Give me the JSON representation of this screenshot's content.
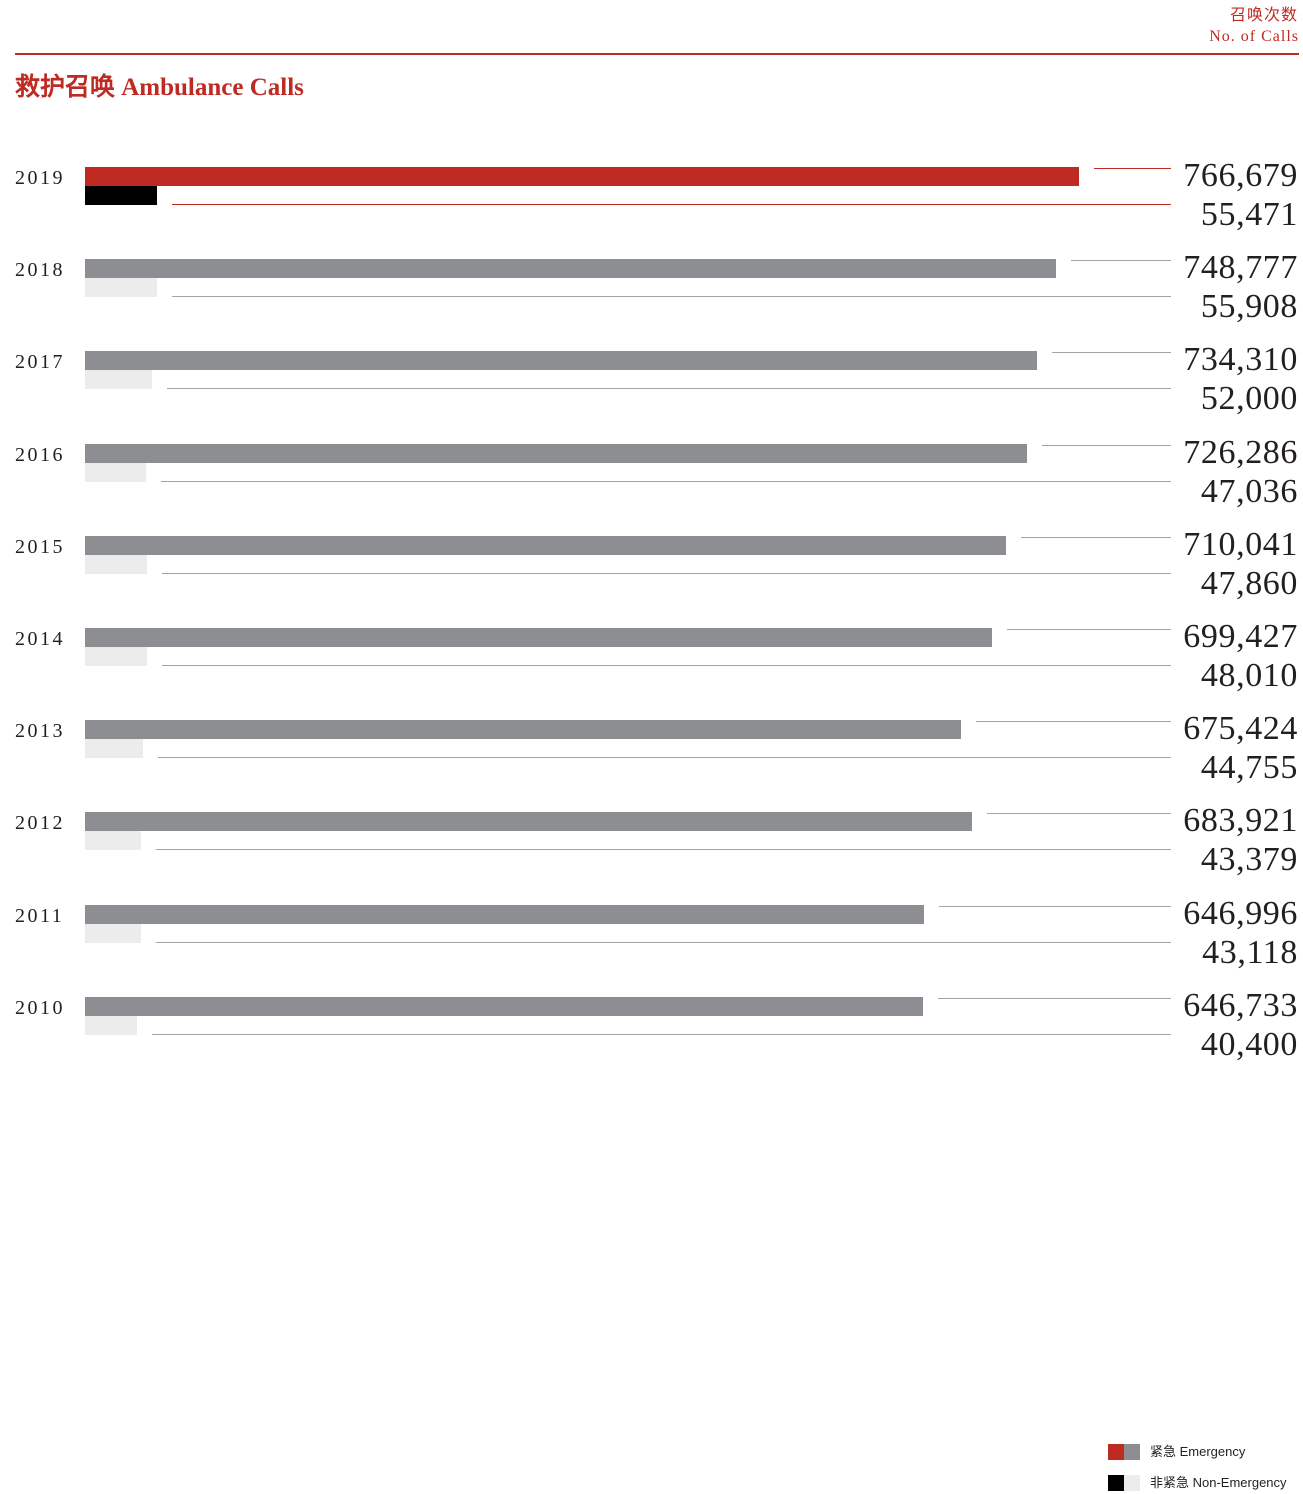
{
  "chart_data": {
    "type": "bar",
    "orientation": "horizontal",
    "title": "救护召唤 Ambulance Calls",
    "value_label": {
      "zh": "召唤次数",
      "en": "No. of Calls"
    },
    "categories": [
      "2019",
      "2018",
      "2017",
      "2016",
      "2015",
      "2014",
      "2013",
      "2012",
      "2011",
      "2010"
    ],
    "series": [
      {
        "name": "紧急 Emergency",
        "values": [
          766679,
          748777,
          734310,
          726286,
          710041,
          699427,
          675424,
          683921,
          646996,
          646733
        ],
        "labels": [
          "766,679",
          "748,777",
          "734,310",
          "726,286",
          "710,041",
          "699,427",
          "675,424",
          "683,921",
          "646,996",
          "646,733"
        ]
      },
      {
        "name": "非紧急 Non-Emergency",
        "values": [
          55471,
          55908,
          52000,
          47036,
          47860,
          48010,
          44755,
          43379,
          43118,
          40400
        ],
        "labels": [
          "55,471",
          "55,908",
          "52,000",
          "47,036",
          "47,860",
          "48,010",
          "44,755",
          "43,379",
          "43,118",
          "40,400"
        ]
      }
    ],
    "highlight_category": "2019",
    "grid": false,
    "legend": "bottom-right",
    "colors": {
      "accent": "#BF2A23",
      "text": "#231F20",
      "emergency": "#8C8E91",
      "non_emergency": "#ECECEC",
      "highlight_emergency": "#BF2A23",
      "highlight_non_emergency": "#000000",
      "leader_line": "#A3A3A3",
      "highlight_leader_line": "#BF2A23"
    }
  }
}
